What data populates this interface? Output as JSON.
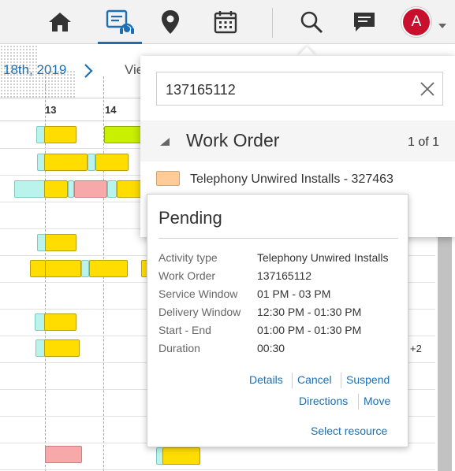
{
  "topbar": {
    "nav": [
      {
        "icon": "home-icon"
      },
      {
        "icon": "dispatch-console-icon",
        "active": true
      },
      {
        "icon": "map-pin-icon"
      },
      {
        "icon": "calendar-icon"
      }
    ],
    "search_icon": "search-icon",
    "messages_icon": "chat-icon",
    "avatar_initial": "A",
    "avatar_color": "#c8102e",
    "accent_color": "#1a6fb5"
  },
  "calendar": {
    "date_label": "18th, 2019",
    "view_label": "Vie",
    "hours": [
      "13",
      "14"
    ],
    "overflow_badge": "+2"
  },
  "search": {
    "query": "137165112",
    "section_title": "Work Order",
    "count": "1 of 1",
    "result": {
      "label": "Telephony Unwired Installs - 327463",
      "swatch_color": "#ffcc99"
    }
  },
  "popup": {
    "status": "Pending",
    "details": [
      {
        "key": "Activity type",
        "value": "Telephony Unwired Installs"
      },
      {
        "key": "Work Order",
        "value": "137165112"
      },
      {
        "key": "Service Window",
        "value": "01 PM - 03 PM"
      },
      {
        "key": "Delivery Window",
        "value": "12:30 PM - 01:30 PM"
      },
      {
        "key": "Start - End",
        "value": "01:00 PM - 01:30 PM"
      },
      {
        "key": "Duration",
        "value": "00:30"
      }
    ],
    "actions": {
      "details": "Details",
      "cancel": "Cancel",
      "suspend": "Suspend",
      "directions": "Directions",
      "move": "Move",
      "select_resource": "Select resource"
    }
  }
}
